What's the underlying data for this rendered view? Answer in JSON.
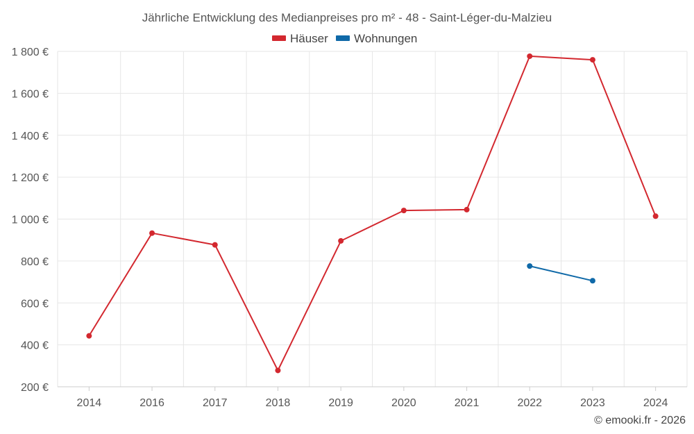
{
  "chart_data": {
    "type": "line",
    "title": "Jährliche Entwicklung des Medianpreises pro m² - 48 - Saint-Léger-du-Malzieu",
    "categories": [
      "2014",
      "2016",
      "2017",
      "2018",
      "2019",
      "2020",
      "2021",
      "2022",
      "2023",
      "2024"
    ],
    "y_ticks": [
      "200 €",
      "400 €",
      "600 €",
      "800 €",
      "1 000 €",
      "1 200 €",
      "1 400 €",
      "1 600 €",
      "1 800 €"
    ],
    "ylim": [
      200,
      1800
    ],
    "grid": true,
    "legend_position": "top-center",
    "series": [
      {
        "name": "Häuser",
        "color": "#d3282f",
        "values": [
          443,
          933,
          877,
          278,
          896,
          1041,
          1045,
          1777,
          1760,
          1014
        ]
      },
      {
        "name": "Wohnungen",
        "color": "#0f69a8",
        "values": [
          null,
          null,
          null,
          null,
          null,
          null,
          null,
          776,
          706,
          null
        ]
      }
    ]
  },
  "credit": "© emooki.fr - 2026"
}
